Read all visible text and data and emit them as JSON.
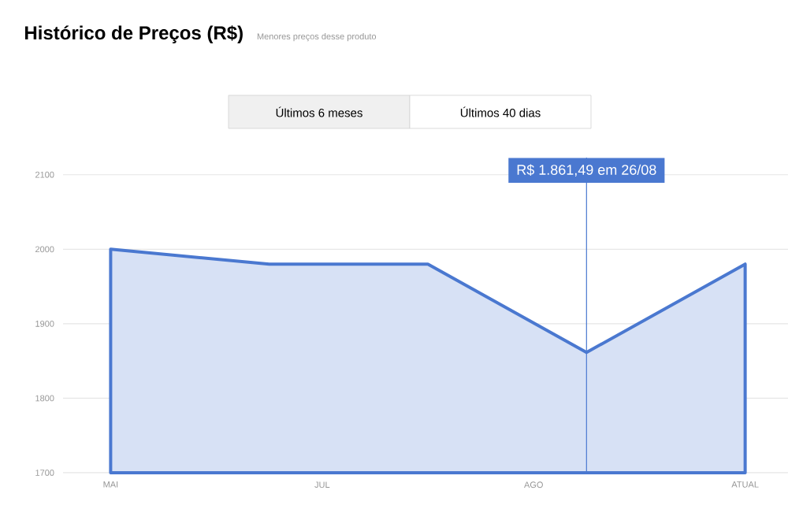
{
  "chart_data": {
    "type": "area",
    "title": "Histórico de Preços (R$)",
    "subtitle": "Menores preços desse produto",
    "categories": [
      "MAI",
      null,
      null,
      null,
      "ATUAL"
    ],
    "values": [
      2000,
      1980,
      1980,
      1861.49,
      1980
    ],
    "color": "#4a78d0",
    "ylim": [
      1700,
      2123
    ],
    "yticks": [
      1700,
      1800,
      1900,
      2000,
      2100
    ],
    "grid": "y",
    "annotations": [
      "R$ 1.861,49 em 26/08",
      "Últimos 6 meses",
      "Últimos 40 dias",
      "JUL",
      "AGO"
    ]
  }
}
